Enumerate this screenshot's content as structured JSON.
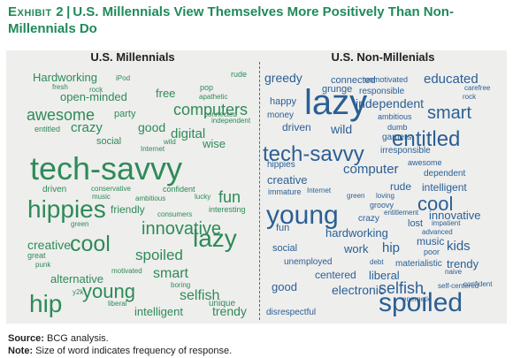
{
  "title": {
    "exhibit": "Exhibit 2",
    "separator": "|",
    "text": "U.S. Millennials View Themselves More Positively Than Non-Millennials Do"
  },
  "chart_data": {
    "type": "word-cloud",
    "note": "Size of word indicates frequency of response.",
    "panels": [
      {
        "name": "U.S. Millennials",
        "color": "#2e8b57",
        "words": [
          {
            "text": "Hardworking",
            "size": 13
          },
          {
            "text": "iPod",
            "size": 8
          },
          {
            "text": "rude",
            "size": 9
          },
          {
            "text": "fresh",
            "size": 8
          },
          {
            "text": "rock",
            "size": 8
          },
          {
            "text": "pop",
            "size": 9
          },
          {
            "text": "open-minded",
            "size": 13
          },
          {
            "text": "free",
            "size": 13
          },
          {
            "text": "apathetic",
            "size": 8
          },
          {
            "text": "awesome",
            "size": 18
          },
          {
            "text": "party",
            "size": 11
          },
          {
            "text": "computers",
            "size": 18
          },
          {
            "text": "connected",
            "size": 8
          },
          {
            "text": "independent",
            "size": 8
          },
          {
            "text": "entitled",
            "size": 9
          },
          {
            "text": "crazy",
            "size": 15
          },
          {
            "text": "good",
            "size": 14
          },
          {
            "text": "digital",
            "size": 15
          },
          {
            "text": "social",
            "size": 11
          },
          {
            "text": "wild",
            "size": 8
          },
          {
            "text": "wise",
            "size": 13
          },
          {
            "text": "Internet",
            "size": 8
          },
          {
            "text": "tech-savvy",
            "size": 36
          },
          {
            "text": "driven",
            "size": 10
          },
          {
            "text": "conservative",
            "size": 8
          },
          {
            "text": "confident",
            "size": 9
          },
          {
            "text": "music",
            "size": 8
          },
          {
            "text": "lucky",
            "size": 8
          },
          {
            "text": "ambitious",
            "size": 8
          },
          {
            "text": "fun",
            "size": 18
          },
          {
            "text": "hippies",
            "size": 28
          },
          {
            "text": "friendly",
            "size": 12
          },
          {
            "text": "interesting",
            "size": 9
          },
          {
            "text": "green",
            "size": 8
          },
          {
            "text": "consumers",
            "size": 8
          },
          {
            "text": "innovative",
            "size": 20
          },
          {
            "text": "cool",
            "size": 25
          },
          {
            "text": "creative",
            "size": 14
          },
          {
            "text": "lazy",
            "size": 28
          },
          {
            "text": "great",
            "size": 9
          },
          {
            "text": "spoiled",
            "size": 17
          },
          {
            "text": "punk",
            "size": 8
          },
          {
            "text": "motivated",
            "size": 8
          },
          {
            "text": "smart",
            "size": 16
          },
          {
            "text": "alternative",
            "size": 13
          },
          {
            "text": "boring",
            "size": 8
          },
          {
            "text": "y2k",
            "size": 8
          },
          {
            "text": "young",
            "size": 22
          },
          {
            "text": "selfish",
            "size": 16
          },
          {
            "text": "hip",
            "size": 28
          },
          {
            "text": "liberal",
            "size": 8
          },
          {
            "text": "unique",
            "size": 10
          },
          {
            "text": "intelligent",
            "size": 13
          },
          {
            "text": "trendy",
            "size": 14
          }
        ]
      },
      {
        "name": "U.S. Non-Millenials",
        "color": "#2a5f94",
        "words": [
          {
            "text": "greedy",
            "size": 14
          },
          {
            "text": "connected",
            "size": 11
          },
          {
            "text": "unmotivated",
            "size": 9
          },
          {
            "text": "educated",
            "size": 15
          },
          {
            "text": "grunge",
            "size": 11
          },
          {
            "text": "responsible",
            "size": 10
          },
          {
            "text": "carefree",
            "size": 8
          },
          {
            "text": "rock",
            "size": 8
          },
          {
            "text": "happy",
            "size": 11
          },
          {
            "text": "lazy",
            "size": 40
          },
          {
            "text": "independent",
            "size": 14
          },
          {
            "text": "smart",
            "size": 20
          },
          {
            "text": "money",
            "size": 10
          },
          {
            "text": "ambitious",
            "size": 9
          },
          {
            "text": "driven",
            "size": 12
          },
          {
            "text": "dumb",
            "size": 9
          },
          {
            "text": "wild",
            "size": 14
          },
          {
            "text": "gamers",
            "size": 10
          },
          {
            "text": "entitled",
            "size": 24
          },
          {
            "text": "tech-savvy",
            "size": 24
          },
          {
            "text": "irresponsible",
            "size": 10
          },
          {
            "text": "hippies",
            "size": 10
          },
          {
            "text": "awesome",
            "size": 9
          },
          {
            "text": "computer",
            "size": 15
          },
          {
            "text": "dependent",
            "size": 10
          },
          {
            "text": "creative",
            "size": 13
          },
          {
            "text": "immature",
            "size": 9
          },
          {
            "text": "rude",
            "size": 12
          },
          {
            "text": "intelligent",
            "size": 12
          },
          {
            "text": "Internet",
            "size": 8
          },
          {
            "text": "green",
            "size": 8
          },
          {
            "text": "loving",
            "size": 8
          },
          {
            "text": "cool",
            "size": 22
          },
          {
            "text": "groovy",
            "size": 9
          },
          {
            "text": "young",
            "size": 30
          },
          {
            "text": "crazy",
            "size": 10
          },
          {
            "text": "entitlement",
            "size": 8
          },
          {
            "text": "innovative",
            "size": 13
          },
          {
            "text": "lost",
            "size": 11
          },
          {
            "text": "impatient",
            "size": 8
          },
          {
            "text": "fun",
            "size": 11
          },
          {
            "text": "hardworking",
            "size": 13
          },
          {
            "text": "advanced",
            "size": 8
          },
          {
            "text": "music",
            "size": 12
          },
          {
            "text": "kids",
            "size": 15
          },
          {
            "text": "social",
            "size": 11
          },
          {
            "text": "work",
            "size": 13
          },
          {
            "text": "hip",
            "size": 15
          },
          {
            "text": "poor",
            "size": 9
          },
          {
            "text": "unemployed",
            "size": 10
          },
          {
            "text": "debt",
            "size": 8
          },
          {
            "text": "materialistic",
            "size": 10
          },
          {
            "text": "trendy",
            "size": 13
          },
          {
            "text": "centered",
            "size": 12
          },
          {
            "text": "liberal",
            "size": 13
          },
          {
            "text": "naive",
            "size": 8
          },
          {
            "text": "good",
            "size": 13
          },
          {
            "text": "electronic",
            "size": 14
          },
          {
            "text": "selfish",
            "size": 18
          },
          {
            "text": "confident",
            "size": 8
          },
          {
            "text": "self-centered",
            "size": 8
          },
          {
            "text": "energetic",
            "size": 8
          },
          {
            "text": "spoiled",
            "size": 30
          },
          {
            "text": "disrespectful",
            "size": 10
          }
        ]
      }
    ]
  },
  "footer": {
    "source_label": "Source:",
    "source_text": "BCG analysis.",
    "note_label": "Note:",
    "note_text": "Size of word indicates frequency of response."
  }
}
